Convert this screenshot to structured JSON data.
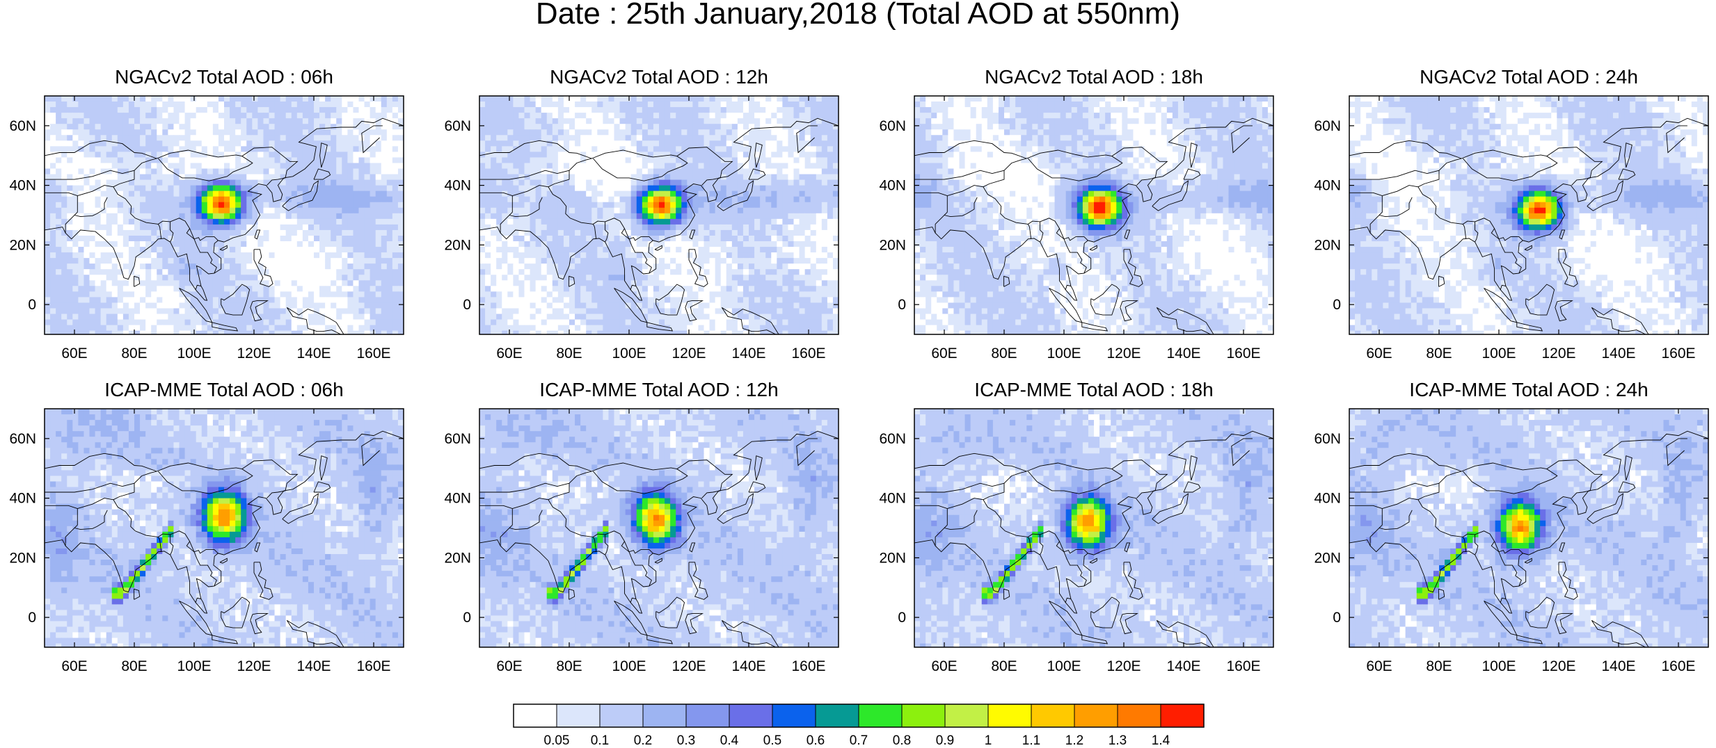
{
  "title": "Date : 25th January,2018 (Total AOD at 550nm)",
  "chart_data": {
    "type": "heatmap",
    "title": "Date : 25th January,2018 (Total AOD at 550nm)",
    "x_ticks": [
      "60E",
      "80E",
      "100E",
      "120E",
      "140E",
      "160E"
    ],
    "y_ticks": [
      "0",
      "20N",
      "40N",
      "60N"
    ],
    "xlim": [
      50,
      170
    ],
    "ylim": [
      -10,
      70
    ],
    "colorbar": {
      "levels": [
        "0.05",
        "0.1",
        "0.2",
        "0.3",
        "0.4",
        "0.5",
        "0.6",
        "0.7",
        "0.8",
        "0.9",
        "1",
        "1.1",
        "1.2",
        "1.3",
        "1.4"
      ],
      "colors": [
        "#ffffff",
        "#dce6fb",
        "#bdccf8",
        "#9db4f2",
        "#8497ee",
        "#6a6fe8",
        "#0b62ed",
        "#069a94",
        "#2de82a",
        "#8cf00e",
        "#c2f046",
        "#fffb00",
        "#ffc900",
        "#ff9e00",
        "#ff7a00",
        "#ff1e00"
      ]
    },
    "panels": [
      {
        "title": "NGACv2 Total AOD : 06h",
        "model": "NGACv2",
        "hour": 6
      },
      {
        "title": "NGACv2 Total AOD : 12h",
        "model": "NGACv2",
        "hour": 12
      },
      {
        "title": "NGACv2 Total AOD : 18h",
        "model": "NGACv2",
        "hour": 18
      },
      {
        "title": "NGACv2 Total AOD : 24h",
        "model": "NGACv2",
        "hour": 24
      },
      {
        "title": "ICAP-MME Total AOD : 06h",
        "model": "ICAP-MME",
        "hour": 6
      },
      {
        "title": "ICAP-MME Total AOD : 12h",
        "model": "ICAP-MME",
        "hour": 12
      },
      {
        "title": "ICAP-MME Total AOD : 18h",
        "model": "ICAP-MME",
        "hour": 18
      },
      {
        "title": "ICAP-MME Total AOD : 24h",
        "model": "ICAP-MME",
        "hour": 24
      }
    ]
  }
}
